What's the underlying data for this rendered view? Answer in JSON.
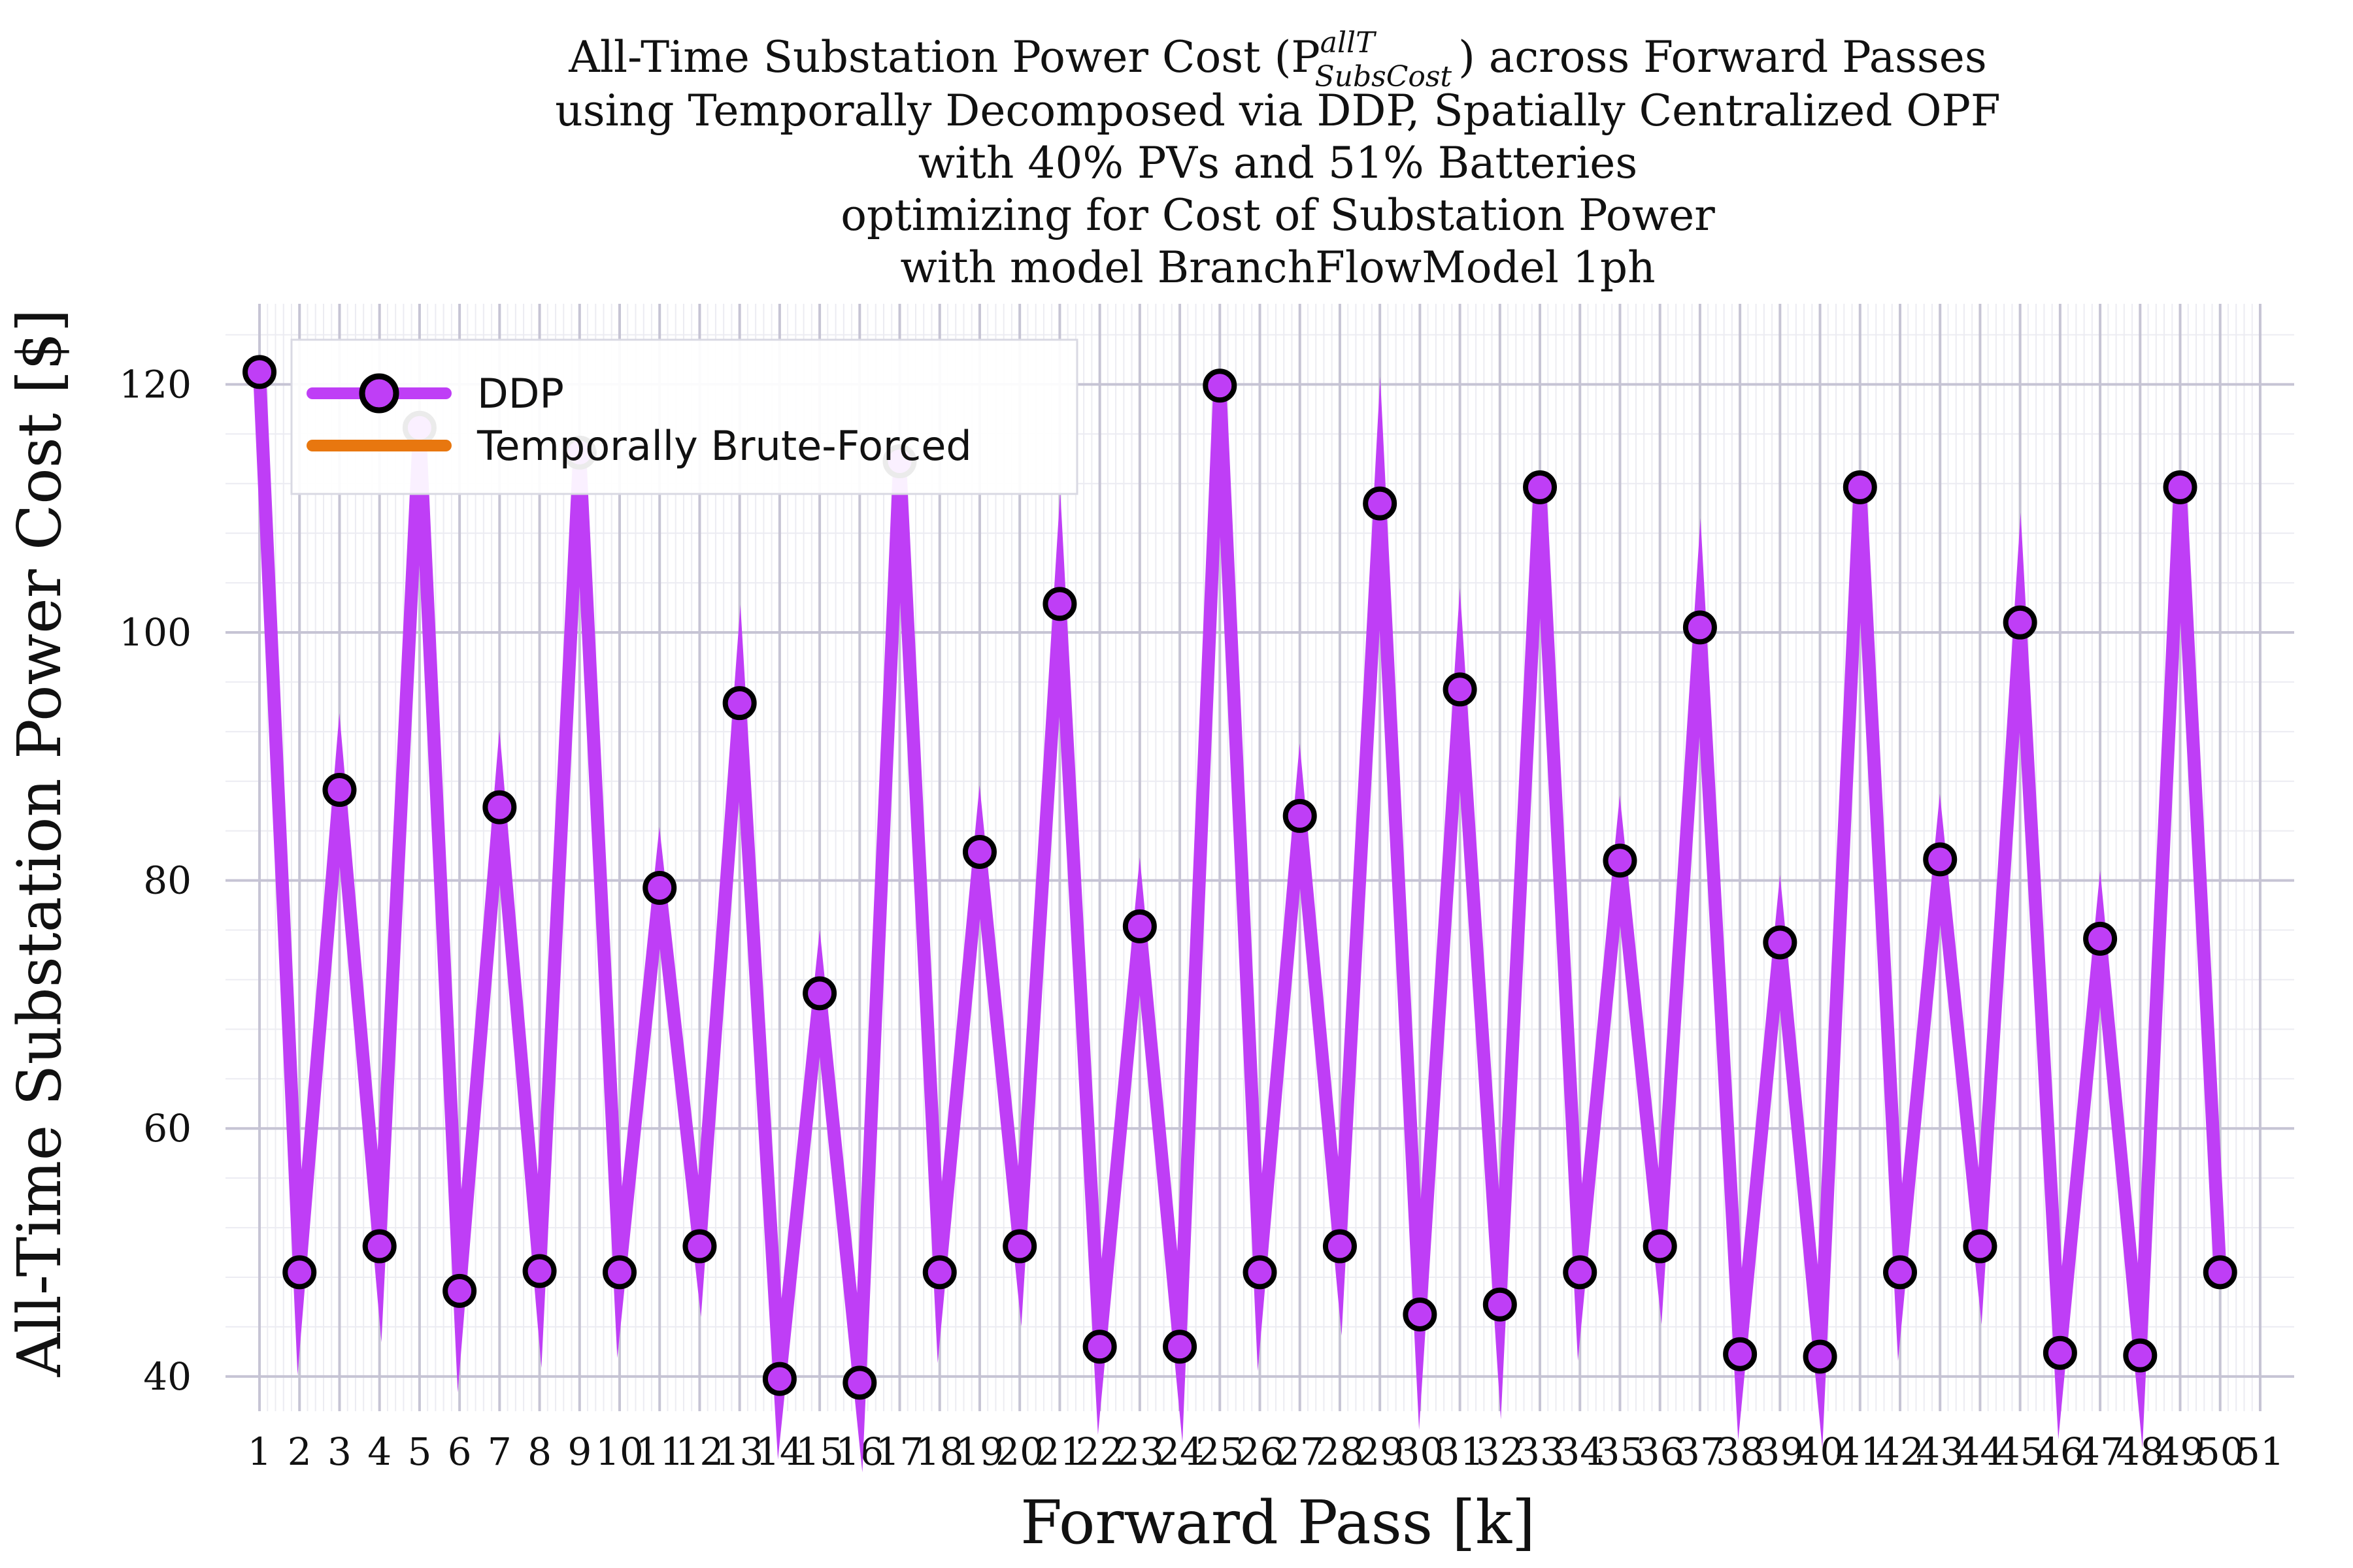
{
  "chart_data": {
    "type": "line",
    "title_lines": [
      "All-Time Substation Power Cost (P",
      "using Temporally Decomposed via DDP, Spatially Centralized OPF",
      "with 40% PVs and 51% Batteries",
      "optimizing for Cost of Substation Power",
      "with model BranchFlowModel 1ph"
    ],
    "title_symbol_sup": "allT",
    "title_symbol_sub": "SubsCost",
    "title_line1_suffix": ") across Forward Passes",
    "xlabel": "Forward Pass [k]",
    "ylabel": "All-Time Substation Power Cost [$]",
    "xlim": [
      0.15,
      51.85
    ],
    "ylim": [
      37.2,
      126.5
    ],
    "x_ticks": [
      1,
      2,
      3,
      4,
      5,
      6,
      7,
      8,
      9,
      10,
      11,
      12,
      13,
      14,
      15,
      16,
      17,
      18,
      19,
      20,
      21,
      22,
      23,
      24,
      25,
      26,
      27,
      28,
      29,
      30,
      31,
      32,
      33,
      34,
      35,
      36,
      37,
      38,
      39,
      40,
      41,
      42,
      43,
      44,
      45,
      46,
      47,
      48,
      49,
      50,
      51
    ],
    "y_ticks": [
      40,
      60,
      80,
      100,
      120
    ],
    "grid": true,
    "legend_position": "top-left",
    "series": [
      {
        "name": "DDP",
        "color": "#bf3ef6",
        "marker": "circle",
        "x": [
          1,
          2,
          3,
          4,
          5,
          6,
          7,
          8,
          9,
          10,
          11,
          12,
          13,
          14,
          15,
          16,
          17,
          18,
          19,
          20,
          21,
          22,
          23,
          24,
          25,
          26,
          27,
          28,
          29,
          30,
          31,
          32,
          33,
          34,
          35,
          36,
          37,
          38,
          39,
          40,
          41,
          42,
          43,
          44,
          45,
          46,
          47,
          48,
          49,
          50
        ],
        "y": [
          121.0,
          48.4,
          87.3,
          50.5,
          116.5,
          46.9,
          85.9,
          48.5,
          114.5,
          48.4,
          79.4,
          50.5,
          94.3,
          39.8,
          70.9,
          39.5,
          113.8,
          48.4,
          82.3,
          50.5,
          102.3,
          42.4,
          76.3,
          42.4,
          119.9,
          48.4,
          85.2,
          50.5,
          110.4,
          45.0,
          95.4,
          45.8,
          111.7,
          48.4,
          81.6,
          50.5,
          100.4,
          41.8,
          75.0,
          41.6,
          111.7,
          48.4,
          81.7,
          50.5,
          100.8,
          41.9,
          75.3,
          41.7,
          111.7,
          48.4
        ]
      },
      {
        "name": "Temporally Brute-Forced",
        "color": "#e8770f",
        "x": [],
        "y": []
      }
    ]
  }
}
